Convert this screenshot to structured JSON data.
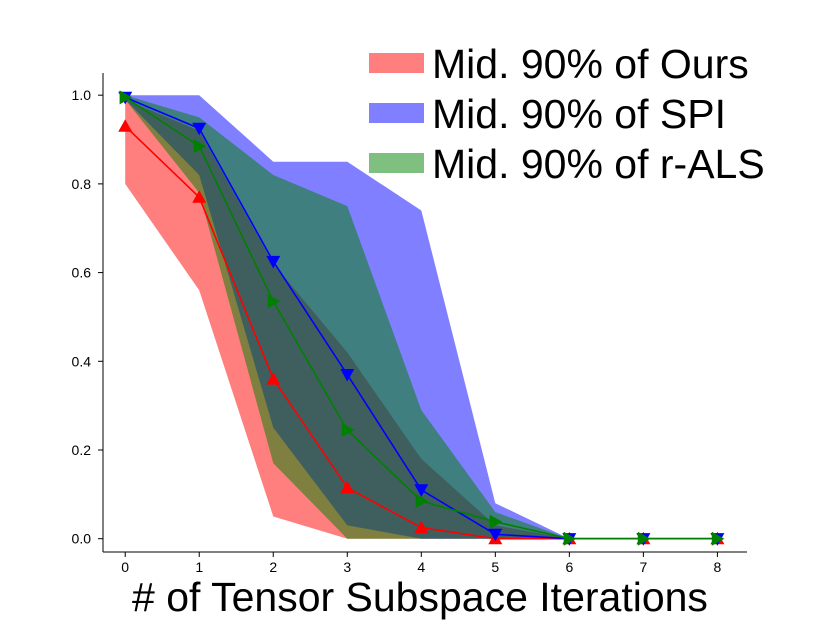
{
  "chart_data": {
    "type": "line",
    "xlabel": "# of Tensor Subspace Iterations",
    "ylabel": "",
    "title": "",
    "x": [
      0,
      1,
      2,
      3,
      4,
      5,
      6,
      7,
      8
    ],
    "xlim": [
      -0.3,
      8.4
    ],
    "ylim": [
      -0.03,
      1.05
    ],
    "xticks": [
      "0",
      "1",
      "2",
      "3",
      "4",
      "5",
      "6",
      "7",
      "8"
    ],
    "yticks": [
      "0.0",
      "0.2",
      "0.4",
      "0.6",
      "0.8",
      "1.0"
    ],
    "ytick_values": [
      0.0,
      0.2,
      0.4,
      0.6,
      0.8,
      1.0
    ],
    "grid": false,
    "legend_position": "top-right",
    "bands": [
      {
        "name": "Mid. 90% of Ours",
        "color": "#ff0000",
        "opacity": 0.5,
        "x": [
          0,
          1,
          2,
          3,
          4,
          5,
          6,
          7,
          8
        ],
        "lower": [
          0.8,
          0.56,
          0.05,
          0.0,
          0.0,
          0.0,
          0.0,
          0.0,
          0.0
        ],
        "upper": [
          0.99,
          0.92,
          0.62,
          0.42,
          0.18,
          0.03,
          0.0,
          0.0,
          0.0
        ]
      },
      {
        "name": "Mid. 90% of SPI",
        "color": "#0000ff",
        "opacity": 0.5,
        "x": [
          0,
          1,
          2,
          3,
          4,
          5,
          6,
          7,
          8
        ],
        "lower": [
          0.99,
          0.82,
          0.25,
          0.03,
          0.0,
          0.0,
          0.0,
          0.0,
          0.0
        ],
        "upper": [
          1.0,
          1.0,
          0.85,
          0.85,
          0.74,
          0.08,
          0.0,
          0.0,
          0.0
        ]
      },
      {
        "name": "Mid. 90% of r-ALS",
        "color": "#008000",
        "opacity": 0.5,
        "x": [
          0,
          1,
          2,
          3,
          4,
          5,
          6,
          7,
          8
        ],
        "lower": [
          0.99,
          0.78,
          0.17,
          0.0,
          0.0,
          0.0,
          0.0,
          0.0,
          0.0
        ],
        "upper": [
          1.0,
          0.95,
          0.82,
          0.75,
          0.29,
          0.06,
          0.0,
          0.0,
          0.0
        ]
      }
    ],
    "series": [
      {
        "color": "#ff0000",
        "marker": "triangle-up",
        "values": [
          0.93,
          0.77,
          0.36,
          0.115,
          0.025,
          0.0,
          0.0,
          0.0,
          0.0
        ]
      },
      {
        "color": "#0000ff",
        "marker": "triangle-down",
        "values": [
          0.995,
          0.925,
          0.625,
          0.37,
          0.11,
          0.01,
          0.0,
          0.0,
          0.0
        ]
      },
      {
        "color": "#008000",
        "marker": "triangle-right",
        "values": [
          0.995,
          0.885,
          0.535,
          0.245,
          0.085,
          0.038,
          0.0,
          0.0,
          0.0
        ]
      }
    ]
  }
}
